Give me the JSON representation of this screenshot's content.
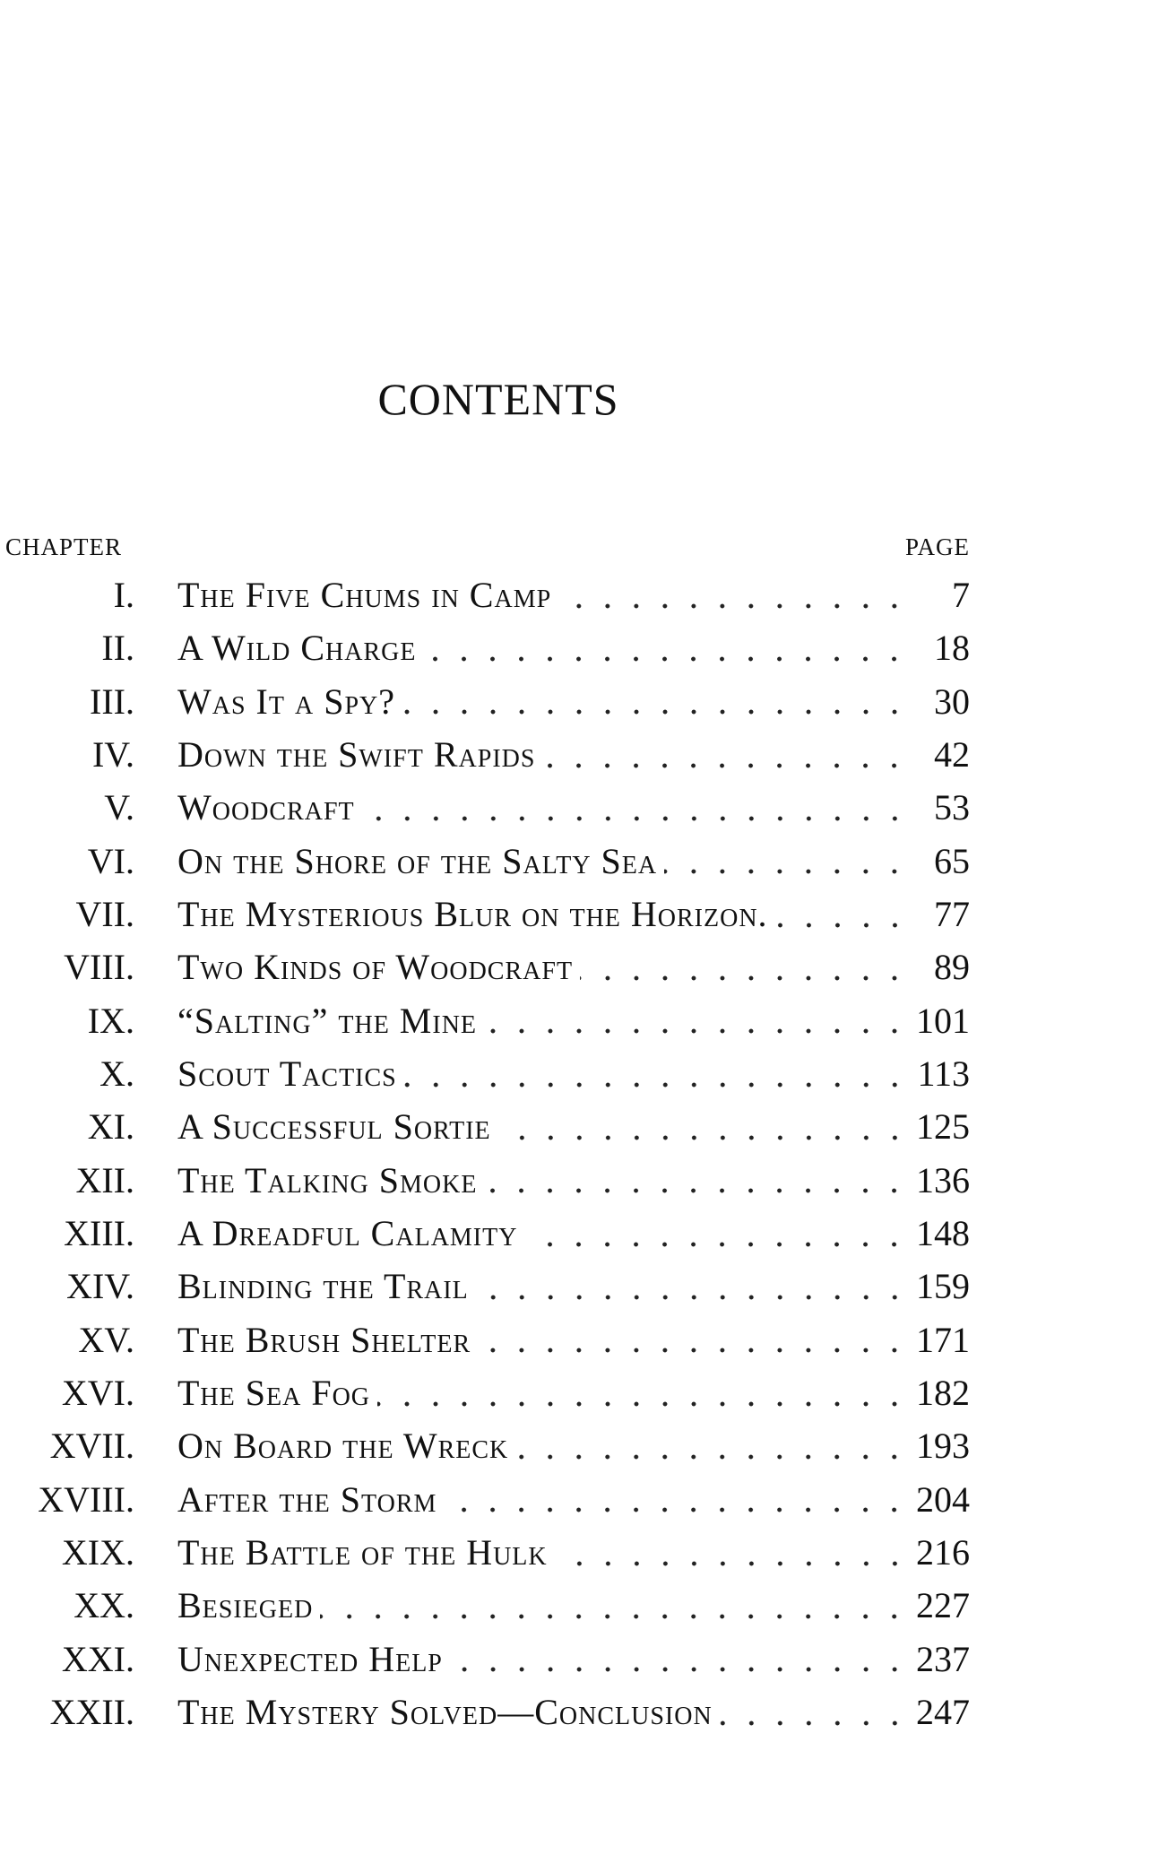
{
  "title": "CONTENTS",
  "header": {
    "chapter": "CHAPTER",
    "page": "PAGE"
  },
  "chapters": [
    {
      "num": "I.",
      "title": "The Five Chums in Camp",
      "page": "7"
    },
    {
      "num": "II.",
      "title": "A Wild Charge",
      "page": "18"
    },
    {
      "num": "III.",
      "title": "Was It a Spy?",
      "page": "30"
    },
    {
      "num": "IV.",
      "title": "Down the Swift Rapids",
      "page": "42"
    },
    {
      "num": "V.",
      "title": "Woodcraft",
      "page": "53"
    },
    {
      "num": "VI.",
      "title": "On the Shore of the Salty Sea",
      "page": "65"
    },
    {
      "num": "VII.",
      "title": "The Mysterious Blur on the Horizon.",
      "page": "77"
    },
    {
      "num": "VIII.",
      "title": "Two Kinds of Woodcraft",
      "page": "89"
    },
    {
      "num": "IX.",
      "title": "“Salting” the Mine",
      "page": "101"
    },
    {
      "num": "X.",
      "title": "Scout Tactics",
      "page": "113"
    },
    {
      "num": "XI.",
      "title": "A Successful Sortie",
      "page": "125"
    },
    {
      "num": "XII.",
      "title": "The Talking Smoke",
      "page": "136"
    },
    {
      "num": "XIII.",
      "title": "A Dreadful Calamity",
      "page": "148"
    },
    {
      "num": "XIV.",
      "title": "Blinding the Trail",
      "page": "159"
    },
    {
      "num": "XV.",
      "title": "The Brush Shelter",
      "page": "171"
    },
    {
      "num": "XVI.",
      "title": "The Sea Fog",
      "page": "182"
    },
    {
      "num": "XVII.",
      "title": "On Board the Wreck",
      "page": "193"
    },
    {
      "num": "XVIII.",
      "title": "After the Storm",
      "page": "204"
    },
    {
      "num": "XIX.",
      "title": "The Battle of the Hulk",
      "page": "216"
    },
    {
      "num": "XX.",
      "title": "Besieged",
      "page": "227"
    },
    {
      "num": "XXI.",
      "title": "Unexpected Help",
      "page": "237"
    },
    {
      "num": "XXII.",
      "title": "The Mystery Solved—Conclusion",
      "page": "247"
    }
  ]
}
